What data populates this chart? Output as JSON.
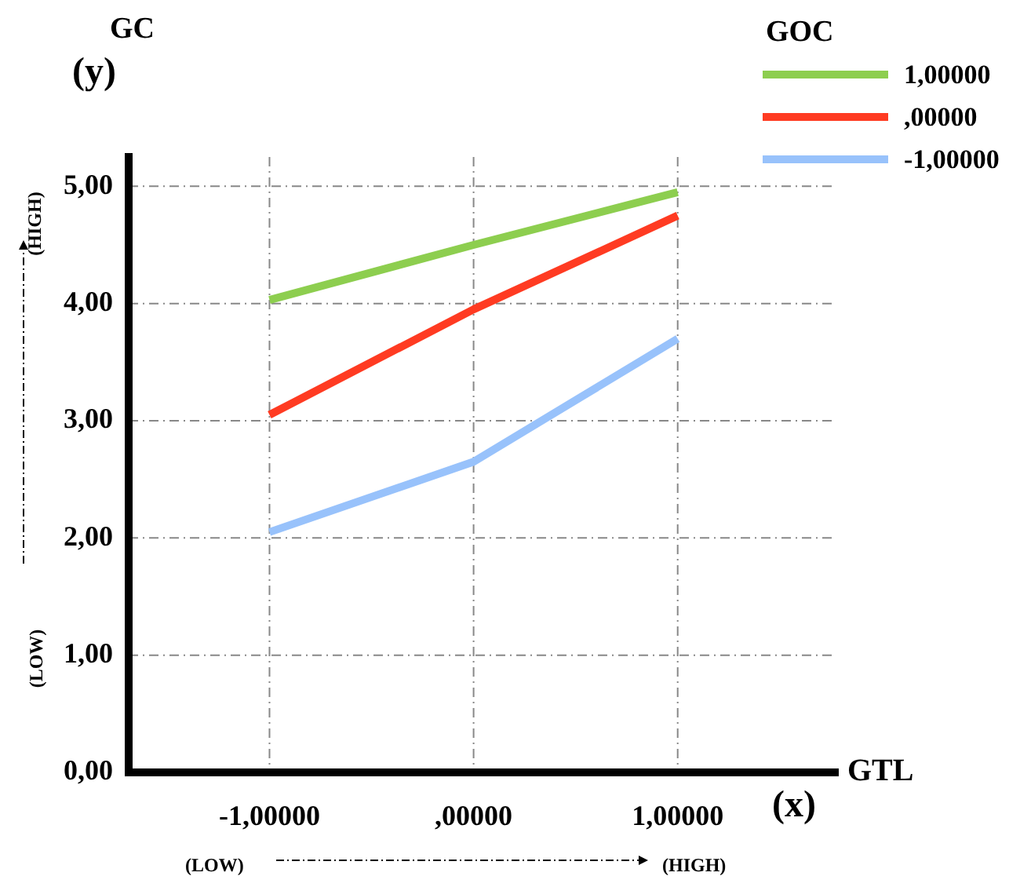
{
  "chart_data": {
    "type": "line",
    "xlabel": "GTL",
    "ylabel": "GC",
    "legend_title": "GOC",
    "legend": "top right",
    "grid": true,
    "marker": "none",
    "line_style": "solid",
    "categories": [
      "-1,00000",
      ",00000",
      "1,00000"
    ],
    "ylim": [
      0,
      5.25
    ],
    "yticks": [
      {
        "value": 0,
        "label": "0,00"
      },
      {
        "value": 1,
        "label": "1,00"
      },
      {
        "value": 2,
        "label": "2,00"
      },
      {
        "value": 3,
        "label": "3,00"
      },
      {
        "value": 4,
        "label": "4,00"
      },
      {
        "value": 5,
        "label": "5,00"
      }
    ],
    "series": [
      {
        "name": "1,00000",
        "color": "#8dce4f",
        "values": [
          4.03,
          4.5,
          4.95
        ]
      },
      {
        "name": ",00000",
        "color": "#ff3b22",
        "values": [
          3.05,
          3.95,
          4.75
        ]
      },
      {
        "name": "-1,00000",
        "color": "#98c2fb",
        "values": [
          2.05,
          2.65,
          3.7
        ]
      }
    ],
    "annotations": [
      "(y)",
      "(x)",
      "(HIGH)",
      "(LOW)",
      "(LOW)",
      "(HIGH)"
    ]
  }
}
